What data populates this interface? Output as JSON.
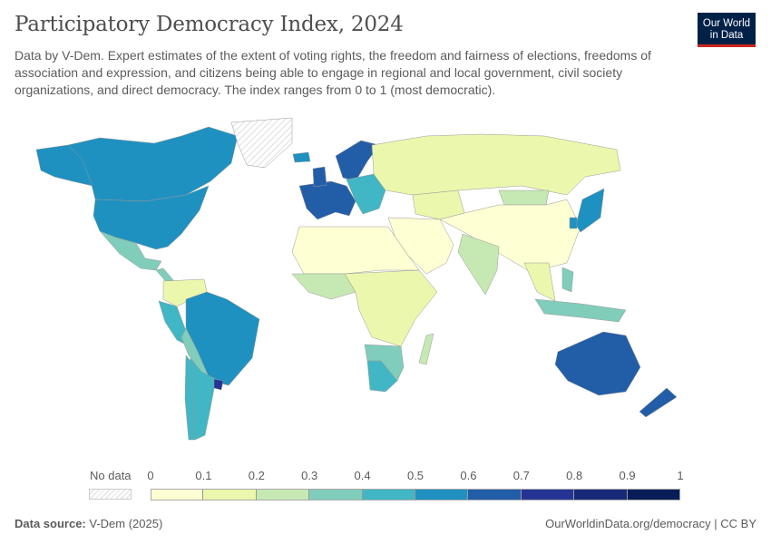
{
  "header": {
    "title": "Participatory Democracy Index, 2024",
    "subtitle": "Data by V-Dem. Expert estimates of the extent of voting rights, the freedom and fairness of elections, freedoms of association and expression, and citizens being able to engage in regional and local government, civil society organizations, and direct democracy. The index ranges from 0 to 1 (most democratic).",
    "logo_text": "Our World in Data"
  },
  "legend": {
    "no_data_label": "No data",
    "ticks": [
      "0",
      "0.1",
      "0.2",
      "0.3",
      "0.4",
      "0.5",
      "0.6",
      "0.7",
      "0.8",
      "0.9",
      "1"
    ],
    "bins": [
      {
        "range": [
          0,
          0.1
        ],
        "color": "#ffffd4"
      },
      {
        "range": [
          0.1,
          0.2
        ],
        "color": "#ebf7ad"
      },
      {
        "range": [
          0.2,
          0.3
        ],
        "color": "#c6e9b4"
      },
      {
        "range": [
          0.3,
          0.4
        ],
        "color": "#80cdbb"
      },
      {
        "range": [
          0.4,
          0.5
        ],
        "color": "#41b6c4"
      },
      {
        "range": [
          0.5,
          0.6
        ],
        "color": "#1f91c0"
      },
      {
        "range": [
          0.6,
          0.7
        ],
        "color": "#225ea8"
      },
      {
        "range": [
          0.7,
          0.8
        ],
        "color": "#253494"
      },
      {
        "range": [
          0.8,
          0.9
        ],
        "color": "#172a79"
      },
      {
        "range": [
          0.9,
          1
        ],
        "color": "#081d58"
      }
    ]
  },
  "footer": {
    "source_label": "Data source:",
    "source_value": "V-Dem (2025)",
    "url": "OurWorldinData.org/democracy | CC BY"
  },
  "map_regions": [
    {
      "name": "alaska",
      "color": "#1f91c0"
    },
    {
      "name": "canada",
      "color": "#1f91c0"
    },
    {
      "name": "united-states",
      "color": "#1f91c0"
    },
    {
      "name": "greenland",
      "color": "nodata"
    },
    {
      "name": "mexico",
      "color": "#80cdbb"
    },
    {
      "name": "central-america",
      "color": "#80cdbb"
    },
    {
      "name": "venezuela-colombia",
      "color": "#ebf7ad"
    },
    {
      "name": "peru",
      "color": "#41b6c4"
    },
    {
      "name": "brazil",
      "color": "#1f91c0"
    },
    {
      "name": "bolivia-paraguay",
      "color": "#80cdbb"
    },
    {
      "name": "argentina",
      "color": "#41b6c4"
    },
    {
      "name": "chile",
      "color": "#41b6c4"
    },
    {
      "name": "uruguay",
      "color": "#253494"
    },
    {
      "name": "iceland",
      "color": "#1f91c0"
    },
    {
      "name": "scandinavia",
      "color": "#225ea8"
    },
    {
      "name": "western-europe",
      "color": "#225ea8"
    },
    {
      "name": "uk",
      "color": "#225ea8"
    },
    {
      "name": "eastern-europe",
      "color": "#41b6c4"
    },
    {
      "name": "russia",
      "color": "#ebf7ad"
    },
    {
      "name": "kazakhstan",
      "color": "#ebf7ad"
    },
    {
      "name": "mongolia",
      "color": "#c6e9b4"
    },
    {
      "name": "china-central-asia",
      "color": "#ffffd4"
    },
    {
      "name": "middle-east",
      "color": "#ffffd4"
    },
    {
      "name": "north-africa",
      "color": "#ffffd4"
    },
    {
      "name": "west-africa",
      "color": "#c6e9b4"
    },
    {
      "name": "central-east-africa",
      "color": "#ebf7ad"
    },
    {
      "name": "southern-africa",
      "color": "#80cdbb"
    },
    {
      "name": "south-africa",
      "color": "#41b6c4"
    },
    {
      "name": "madagascar",
      "color": "#c6e9b4"
    },
    {
      "name": "india",
      "color": "#c6e9b4"
    },
    {
      "name": "southeast-asia",
      "color": "#ebf7ad"
    },
    {
      "name": "indonesia",
      "color": "#80cdbb"
    },
    {
      "name": "philippines",
      "color": "#80cdbb"
    },
    {
      "name": "japan",
      "color": "#1f91c0"
    },
    {
      "name": "south-korea",
      "color": "#1f91c0"
    },
    {
      "name": "australia",
      "color": "#225ea8"
    },
    {
      "name": "new-zealand",
      "color": "#225ea8"
    }
  ]
}
